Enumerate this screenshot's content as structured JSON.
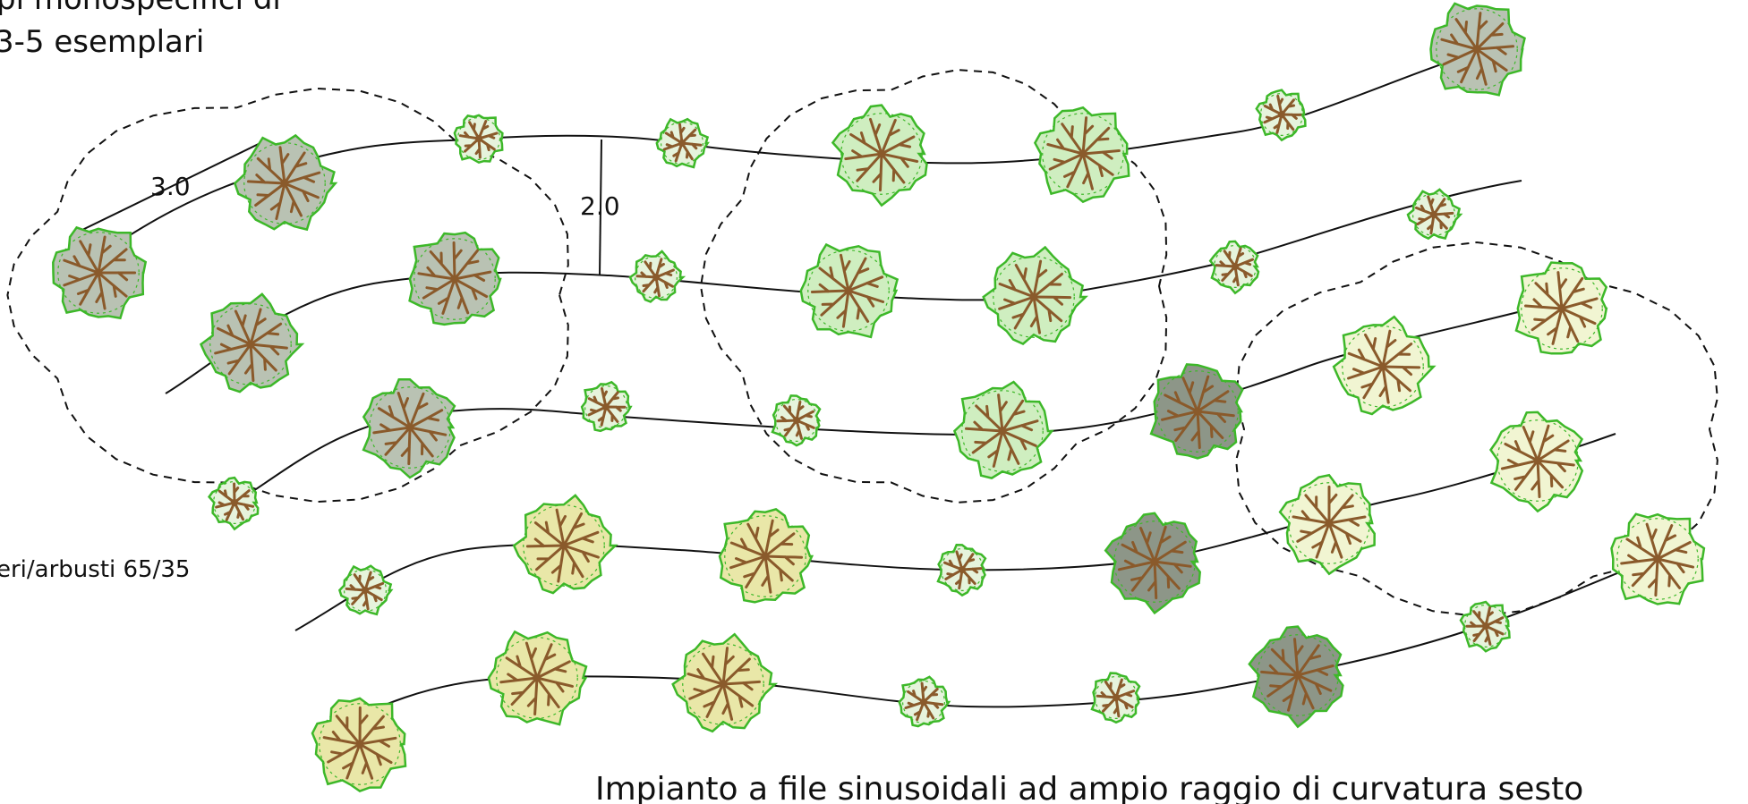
{
  "labels": {
    "top_left_line1": "pi monospecifici di",
    "top_left_line2": "3-5 esemplari",
    "left_mid": "eri/arbusti 65/35",
    "dim_a": "3.0",
    "dim_b": "2.0",
    "caption": "Impianto a file sinusoidali ad ampio raggio di curvatura sesto"
  },
  "colors": {
    "line": "#111111",
    "dash": "#111111",
    "leaf_outline": "#3db829",
    "trunk": "#8a5a2b",
    "fill_grey": "#b9c2b3",
    "fill_green": "#cfeec0",
    "fill_yellow": "#e9e7a8",
    "fill_pale": "#f1f5d2",
    "fill_dark": "#8d9688",
    "fill_shrub": "#e6f3dc"
  },
  "legend_icons": [
    "tree-icon",
    "shrub-icon"
  ]
}
